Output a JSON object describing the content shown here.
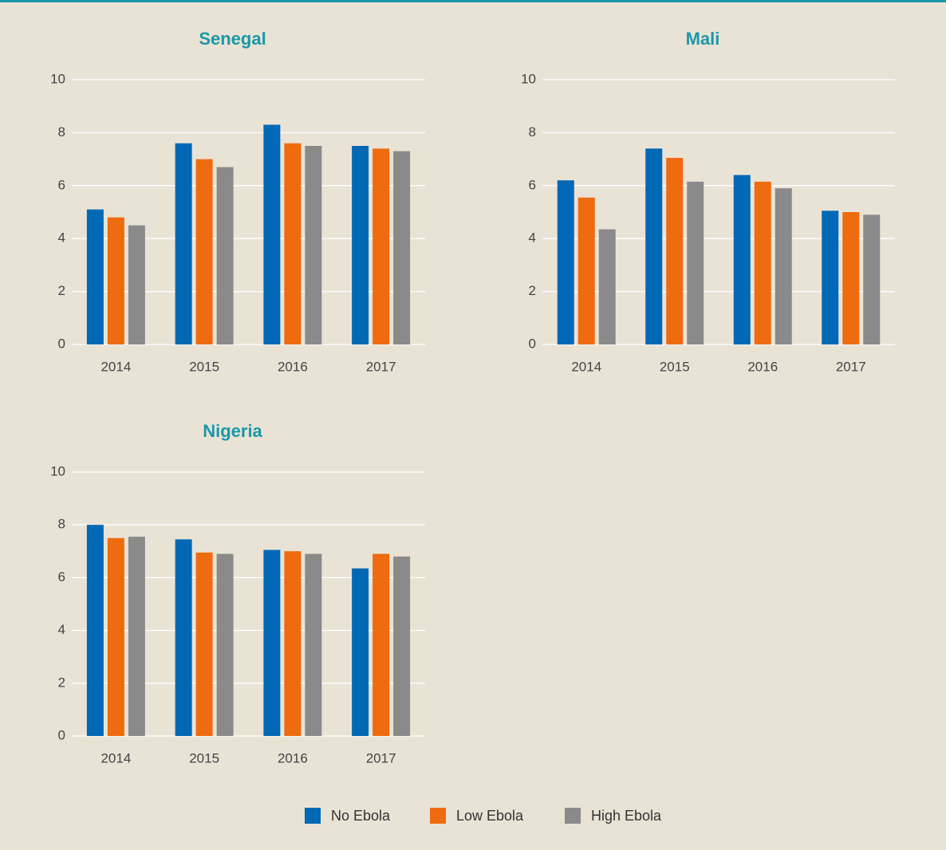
{
  "chart_data": [
    {
      "type": "bar",
      "title": "Senegal",
      "categories": [
        "2014",
        "2015",
        "2016",
        "2017"
      ],
      "series": [
        {
          "values": [
            5.1,
            7.6,
            8.3,
            7.5
          ]
        },
        {
          "values": [
            4.8,
            7.0,
            7.6,
            7.4
          ]
        },
        {
          "values": [
            4.5,
            6.7,
            7.5,
            7.3
          ]
        }
      ],
      "ylim": [
        0,
        10
      ],
      "yticks": [
        0,
        2,
        4,
        6,
        8,
        10
      ],
      "grid": true
    },
    {
      "type": "bar",
      "title": "Mali",
      "categories": [
        "2014",
        "2015",
        "2016",
        "2017"
      ],
      "series": [
        {
          "values": [
            6.2,
            7.4,
            6.4,
            5.05
          ]
        },
        {
          "values": [
            5.55,
            7.05,
            6.15,
            5.0
          ]
        },
        {
          "values": [
            4.35,
            6.15,
            5.9,
            4.9
          ]
        }
      ],
      "ylim": [
        0,
        10
      ],
      "yticks": [
        0,
        2,
        4,
        6,
        8,
        10
      ],
      "grid": true
    },
    {
      "type": "bar",
      "title": "Nigeria",
      "categories": [
        "2014",
        "2015",
        "2016",
        "2017"
      ],
      "series": [
        {
          "values": [
            8.0,
            7.45,
            7.05,
            6.35
          ]
        },
        {
          "values": [
            7.5,
            6.95,
            7.0,
            6.9
          ]
        },
        {
          "values": [
            7.55,
            6.9,
            6.9,
            6.8
          ]
        }
      ],
      "ylim": [
        0,
        10
      ],
      "yticks": [
        0,
        2,
        4,
        6,
        8,
        10
      ],
      "grid": true
    }
  ],
  "legend": [
    {
      "name": "No Ebola",
      "color": "#0068b4"
    },
    {
      "name": "Low Ebola",
      "color": "#ee6b10"
    },
    {
      "name": "High Ebola",
      "color": "#8a8a8a"
    }
  ]
}
